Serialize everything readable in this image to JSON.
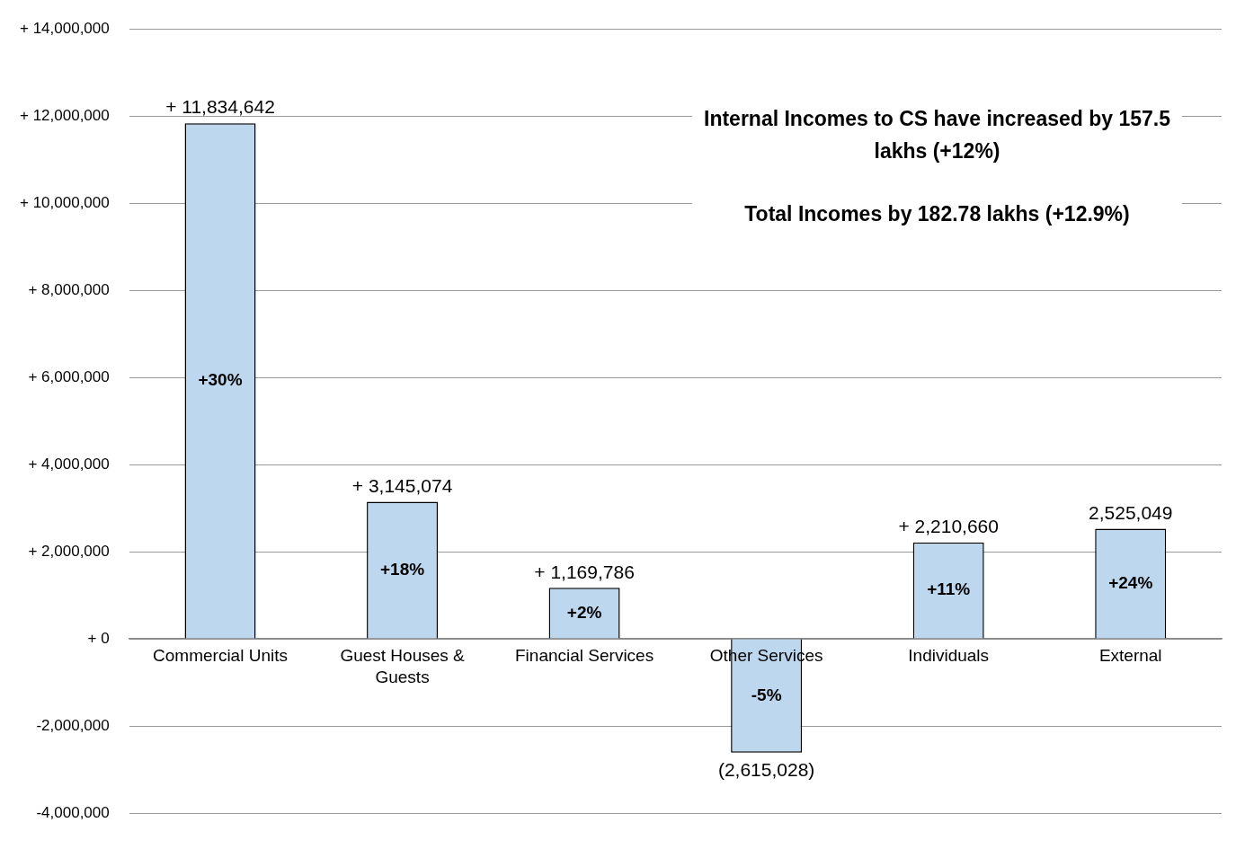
{
  "chart_data": {
    "type": "bar",
    "categories": [
      "Commercial Units",
      "Guest Houses & Guests",
      "Financial Services",
      "Other Services",
      "Individuals",
      "External"
    ],
    "values": [
      11834642,
      3145074,
      1169786,
      -2615028,
      2210660,
      2525049
    ],
    "value_labels": [
      "+ 11,834,642",
      "+ 3,145,074",
      "+ 1,169,786",
      "(2,615,028)",
      "+ 2,210,660",
      "2,525,049"
    ],
    "color": "#bdd7ee",
    "ylim": [
      -4000000,
      14000000
    ],
    "yticks": [
      {
        "value": -4000000,
        "label": "-4,000,000"
      },
      {
        "value": -2000000,
        "label": "-2,000,000"
      },
      {
        "value": 0,
        "label": "+ 0"
      },
      {
        "value": 2000000,
        "label": "+ 2,000,000"
      },
      {
        "value": 4000000,
        "label": "+ 4,000,000"
      },
      {
        "value": 6000000,
        "label": "+ 6,000,000"
      },
      {
        "value": 8000000,
        "label": "+ 8,000,000"
      },
      {
        "value": 10000000,
        "label": "+ 10,000,000"
      },
      {
        "value": 12000000,
        "label": "+ 12,000,000"
      },
      {
        "value": 14000000,
        "label": "+ 14,000,000"
      }
    ],
    "grid": "y",
    "legend": false,
    "annotations": [
      "+30%",
      "+18%",
      "+2%",
      "-5%",
      "+11%",
      "+24%",
      "Internal Incomes to CS have increased by 157.5 lakhs  (+12%)",
      "Total Incomes  by 182.78 lakhs  (+12.9%)"
    ]
  }
}
